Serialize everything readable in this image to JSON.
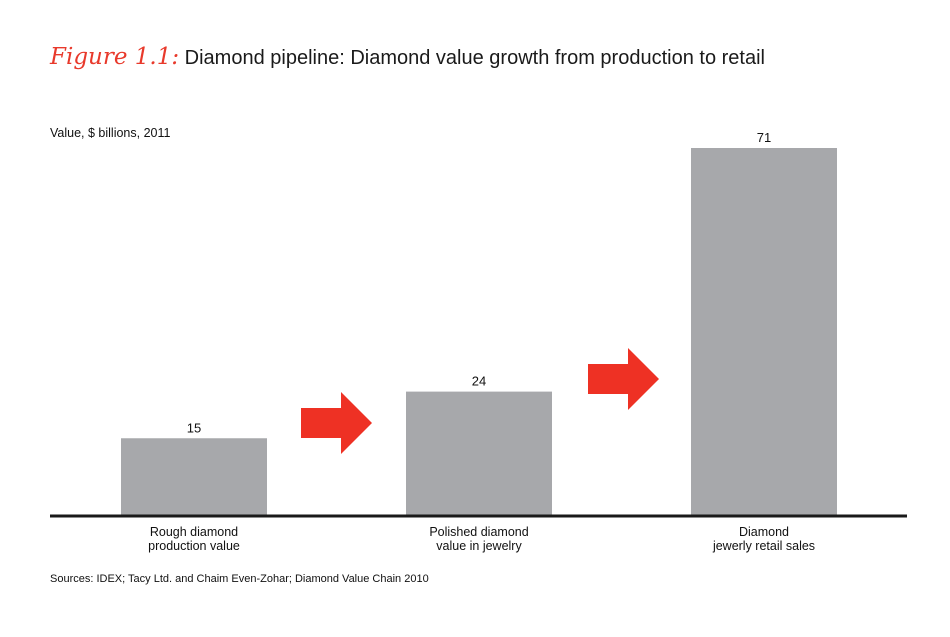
{
  "title": {
    "figure_label": "Figure 1.1:",
    "text": "Diamond pipeline: Diamond value growth from production to retail"
  },
  "unit_label": "Value, $ billions, 2011",
  "source": "Sources: IDEX; Tacy Ltd. and Chaim Even-Zohar; Diamond Value Chain 2010",
  "colors": {
    "bar": "#a7a8ab",
    "arrow": "#ee3124",
    "axis": "#1a1a1a",
    "accent": "#e8392b"
  },
  "chart_data": {
    "type": "bar",
    "title": "Diamond pipeline: Diamond value growth from production to retail",
    "ylabel": "Value, $ billions, 2011",
    "categories": [
      [
        "Rough diamond",
        "production value"
      ],
      [
        "Polished diamond",
        "value in jewelry"
      ],
      [
        "Diamond",
        "jewerly retail sales"
      ]
    ],
    "values": [
      15,
      24,
      71
    ],
    "data_labels": [
      "15",
      "24",
      "71"
    ],
    "ylim": [
      0,
      71
    ],
    "grid": false,
    "legend": "none",
    "annotations": [
      "arrow-right",
      "arrow-right"
    ]
  }
}
